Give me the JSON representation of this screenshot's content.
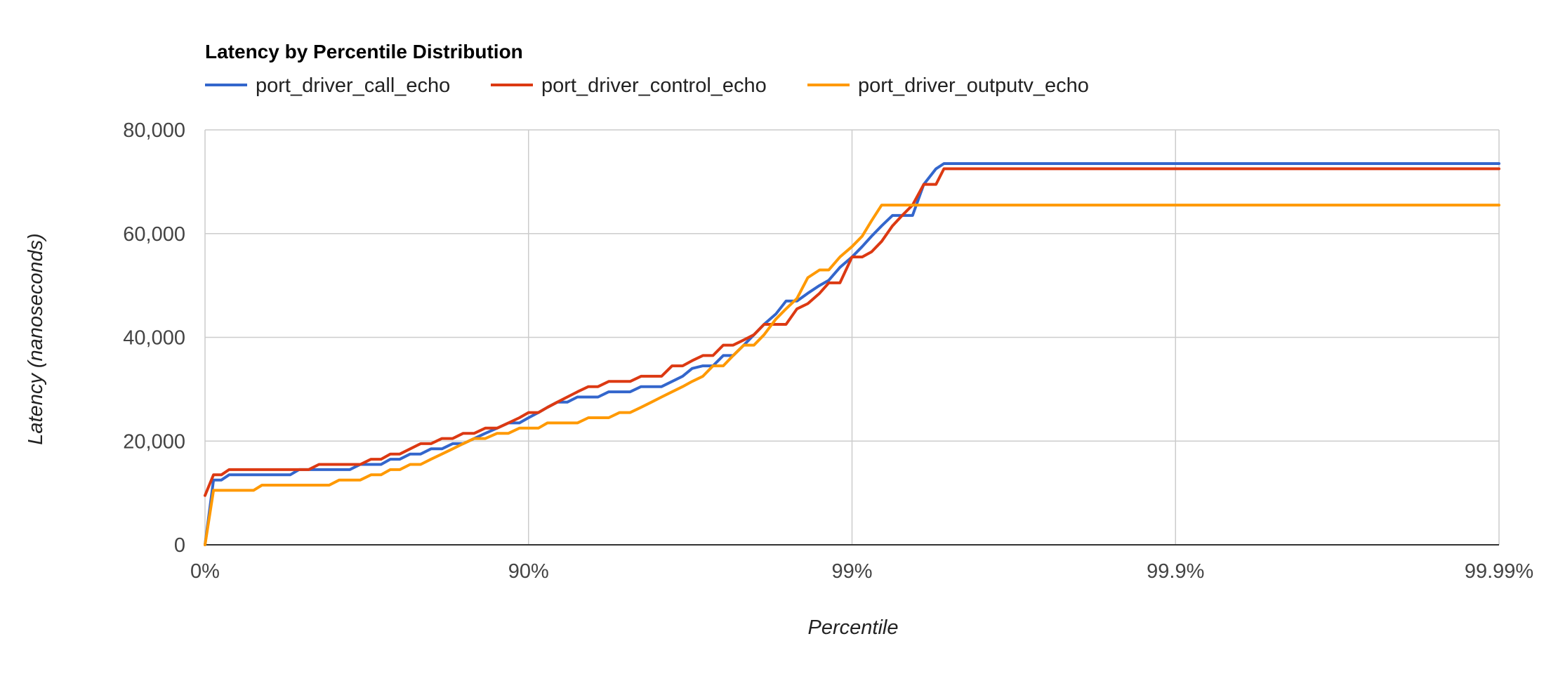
{
  "chart_data": {
    "type": "line",
    "title": "Latency by Percentile Distribution",
    "xlabel": "Percentile",
    "ylabel": "Latency (nanoseconds)",
    "ylim": [
      0,
      80000
    ],
    "y_ticks": [
      0,
      20000,
      40000,
      60000,
      80000
    ],
    "y_tick_labels": [
      "0",
      "20,000",
      "40,000",
      "60,000",
      "80,000"
    ],
    "x_scale": "log 1/(1-p)",
    "x_ticks": [
      "0%",
      "90%",
      "99%",
      "99.9%",
      "99.99%"
    ],
    "xlim": [
      "0%",
      "99.99%"
    ],
    "grid": true,
    "legend_position": "top",
    "x": [
      "0%",
      "5.88%",
      "10.98%",
      "15.74%",
      "20.57%",
      "25.00%",
      "29.21%",
      "33.33%",
      "37.48%",
      "41.67%",
      "45.45%",
      "48.78%",
      "52.14%",
      "55.56%",
      "58.68%",
      "61.54%",
      "64.29%",
      "66.89%",
      "69.31%",
      "71.43%",
      "73.25%",
      "75.00%",
      "76.78%",
      "78.45%",
      "79.98%",
      "81.48%",
      "82.84%",
      "84.08%",
      "85.28%",
      "86.40%",
      "87.50%",
      "88.46%",
      "89.33%",
      "90.00%",
      "90.68%",
      "91.26%",
      "91.85%",
      "92.41%",
      "92.94%",
      "93.47%",
      "93.90%",
      "94.35%",
      "94.77%",
      "95.15%",
      "95.51%",
      "95.83%",
      "96.12%",
      "96.40%",
      "96.66%",
      "96.88%",
      "97.11%",
      "97.31%",
      "97.50%",
      "97.67%",
      "97.84%",
      "97.99%",
      "98.13%",
      "98.28%",
      "98.40%",
      "98.52%",
      "98.63%",
      "98.74%",
      "98.82%",
      "98.91%",
      "99.00%",
      "99.07%",
      "99.13%",
      "99.19%",
      "99.25%",
      "99.30%",
      "99.35%",
      "99.40%",
      "99.45%",
      "99.48%",
      "99.52%",
      "99.56%",
      "99.59%",
      "99.62%",
      "99.65%",
      "99.68%",
      "99.70%",
      "99.72%",
      "99.74%",
      "99.76%",
      "99.78%",
      "99.80%",
      "99.81%",
      "99.83%",
      "99.84%",
      "99.86%",
      "99.87%",
      "99.88%",
      "99.89%",
      "99.90%",
      "99.91%",
      "99.91%",
      "99.92%",
      "99.93%",
      "99.93%",
      "99.94%",
      "99.94%",
      "99.95%",
      "99.95%",
      "99.96%",
      "99.96%",
      "99.96%",
      "99.97%",
      "99.97%",
      "99.97%",
      "99.97%",
      "99.98%",
      "99.98%",
      "99.98%",
      "99.98%",
      "99.98%",
      "99.99%"
    ],
    "series": [
      {
        "name": "port_driver_call_echo",
        "color": "#3366cc",
        "values": [
          0,
          12500,
          12500,
          13500,
          13500,
          13500,
          13500,
          13500,
          13500,
          13500,
          13500,
          14500,
          14500,
          14500,
          14500,
          14500,
          14500,
          15500,
          15500,
          15500,
          16500,
          16500,
          17500,
          17500,
          18500,
          18500,
          19500,
          19500,
          20500,
          21500,
          22500,
          23500,
          23500,
          24500,
          25500,
          26500,
          27500,
          27500,
          28500,
          28500,
          28500,
          29500,
          29500,
          29500,
          30500,
          30500,
          30500,
          31500,
          32500,
          34000,
          34500,
          34500,
          36500,
          36500,
          38500,
          40500,
          42500,
          44500,
          47000,
          47000,
          48500,
          50000,
          51000,
          53500,
          55500,
          57500,
          59500,
          61500,
          63500,
          63500,
          63500,
          69500,
          72500,
          73500,
          73500,
          73500,
          73500,
          73500,
          73500,
          73500,
          73500,
          73500,
          73500,
          73500,
          73500,
          73500,
          73500,
          73500,
          73500,
          73500,
          73500,
          73500,
          73500,
          73500,
          73500,
          73500,
          73500,
          73500,
          73500,
          73500,
          73500,
          73500,
          73500,
          73500,
          73500,
          73500,
          73500,
          73500,
          73500,
          73500,
          73500,
          73500,
          73500,
          73500,
          73500,
          73500
        ]
      },
      {
        "name": "port_driver_control_echo",
        "color": "#dc3912",
        "values": [
          9500,
          13500,
          13500,
          14500,
          14500,
          14500,
          14500,
          14500,
          14500,
          14500,
          14500,
          14500,
          14500,
          15500,
          15500,
          15500,
          15500,
          15500,
          16500,
          16500,
          17500,
          17500,
          18500,
          19500,
          19500,
          20500,
          20500,
          21500,
          21500,
          22500,
          22500,
          23500,
          24500,
          25500,
          25500,
          26500,
          27500,
          28500,
          29500,
          30500,
          30500,
          31500,
          31500,
          31500,
          32500,
          32500,
          32500,
          34500,
          34500,
          35500,
          36500,
          36500,
          38500,
          38500,
          39500,
          40500,
          42500,
          42500,
          42500,
          45500,
          46500,
          48500,
          50500,
          50500,
          55500,
          55500,
          56500,
          58500,
          61500,
          63500,
          65500,
          69500,
          69500,
          72500,
          72500,
          72500,
          72500,
          72500,
          72500,
          72500,
          72500,
          72500,
          72500,
          72500,
          72500,
          72500,
          72500,
          72500,
          72500,
          72500,
          72500,
          72500,
          72500,
          72500,
          72500,
          72500,
          72500,
          72500,
          72500,
          72500,
          72500,
          72500,
          72500,
          72500,
          72500,
          72500,
          72500,
          72500,
          72500,
          72500,
          72500,
          72500,
          72500,
          72500,
          72500,
          72500
        ]
      },
      {
        "name": "port_driver_outputv_echo",
        "color": "#ff9900",
        "values": [
          0,
          10500,
          10500,
          10500,
          10500,
          10500,
          10500,
          11500,
          11500,
          11500,
          11500,
          11500,
          11500,
          11500,
          11500,
          12500,
          12500,
          12500,
          13500,
          13500,
          14500,
          14500,
          15500,
          15500,
          16500,
          17500,
          18500,
          19500,
          20500,
          20500,
          21500,
          21500,
          22500,
          22500,
          22500,
          23500,
          23500,
          23500,
          23500,
          24500,
          24500,
          24500,
          25500,
          25500,
          26500,
          27500,
          28500,
          29500,
          30500,
          31500,
          32500,
          34500,
          34500,
          36500,
          38500,
          38500,
          40500,
          43500,
          45500,
          47500,
          51500,
          53000,
          53000,
          55500,
          57500,
          59500,
          62500,
          65500,
          65500,
          65500,
          65500,
          65500,
          65500,
          65500,
          65500,
          65500,
          65500,
          65500,
          65500,
          65500,
          65500,
          65500,
          65500,
          65500,
          65500,
          65500,
          65500,
          65500,
          65500,
          65500,
          65500,
          65500,
          65500,
          65500,
          65500,
          65500,
          65500,
          65500,
          65500,
          65500,
          65500,
          65500,
          65500,
          65500,
          65500,
          65500,
          65500,
          65500,
          65500,
          65500,
          65500,
          65500,
          65500,
          65500,
          65500,
          65500
        ]
      }
    ]
  }
}
